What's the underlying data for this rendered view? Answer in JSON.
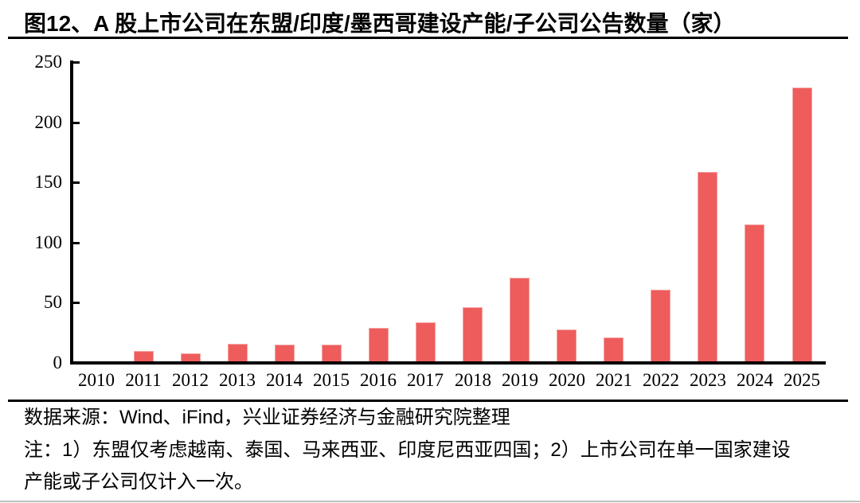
{
  "title": "图12、A 股上市公司在东盟/印度/墨西哥建设产能/子公司公告数量（家）",
  "chart_data": {
    "type": "bar",
    "title": "A 股上市公司在东盟/印度/墨西哥建设产能/子公司公告数量（家）",
    "categories": [
      "2010",
      "2011",
      "2012",
      "2013",
      "2014",
      "2015",
      "2016",
      "2017",
      "2018",
      "2019",
      "2020",
      "2021",
      "2022",
      "2023",
      "2024",
      "2025"
    ],
    "values": [
      1,
      10,
      8,
      16,
      15,
      15,
      29,
      34,
      46,
      71,
      28,
      21,
      61,
      159,
      115,
      229
    ],
    "xlabel": "",
    "ylabel": "",
    "ylim": [
      0,
      250
    ],
    "yticks": [
      0,
      50,
      100,
      150,
      200,
      250
    ],
    "grid": false,
    "legend": "none",
    "bar_color": "#ee5c5c",
    "bar_edge_color": "#f6a3a3",
    "axis_color": "#000000"
  },
  "footer": {
    "source": "数据来源：Wind、iFind，兴业证券经济与金融研究院整理",
    "note_lines": [
      "注：1）东盟仅考虑越南、泰国、马来西亚、印度尼西亚四国；2）上市公司在单一国家建设",
      "产能或子公司仅计入一次。"
    ]
  },
  "colors": {
    "background": "#ffffff",
    "separator": "#000000",
    "bottom_rule": "#bfbfbf",
    "text": "#000000"
  }
}
